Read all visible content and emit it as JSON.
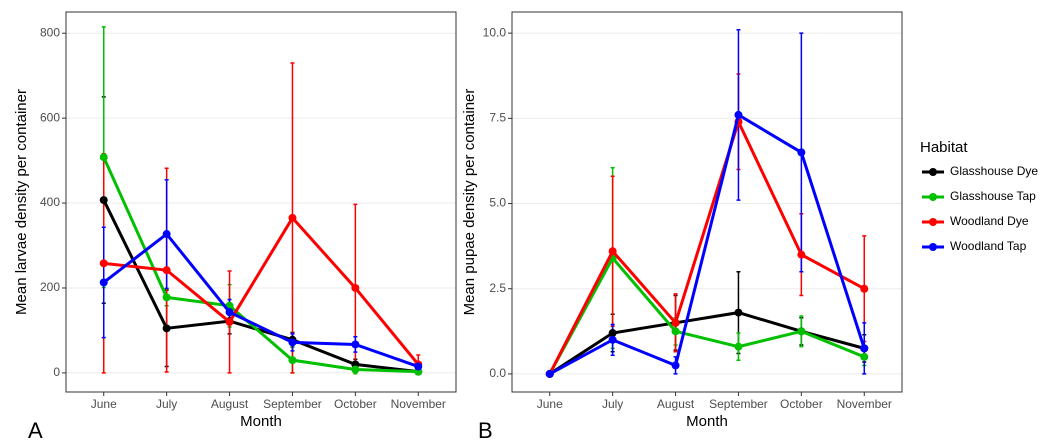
{
  "chart_data": [
    {
      "type": "line",
      "panel_label": "A",
      "x_label": "Month",
      "y_label": "Mean larvae density per container",
      "categories": [
        "June",
        "July",
        "August",
        "September",
        "October",
        "November"
      ],
      "ylim": [
        -45,
        850
      ],
      "yticks": [
        0,
        200,
        400,
        600,
        800
      ],
      "grid": true,
      "legend_title": "Habitat",
      "series": [
        {
          "name": "Glasshouse Dye",
          "color": "#000000",
          "values": [
            407,
            105,
            122,
            78,
            20,
            3
          ],
          "errors": [
            243,
            90,
            30,
            17,
            12,
            5
          ]
        },
        {
          "name": "Glasshouse Tap",
          "color": "#00c000",
          "values": [
            508,
            178,
            158,
            30,
            8,
            3
          ],
          "errors": [
            307,
            20,
            50,
            30,
            10,
            5
          ]
        },
        {
          "name": "Woodland Dye",
          "color": "#ff0000",
          "values": [
            258,
            242,
            120,
            365,
            200,
            20
          ],
          "errors": [
            258,
            240,
            120,
            365,
            197,
            22
          ]
        },
        {
          "name": "Woodland Tap",
          "color": "#0000ff",
          "values": [
            213,
            327,
            143,
            72,
            67,
            15
          ],
          "errors": [
            130,
            128,
            30,
            20,
            18,
            8
          ]
        }
      ]
    },
    {
      "type": "line",
      "panel_label": "B",
      "x_label": "Month",
      "y_label": "Mean pupae density per container",
      "categories": [
        "June",
        "July",
        "August",
        "September",
        "October",
        "November"
      ],
      "ylim": [
        -0.53,
        10.62
      ],
      "yticks": [
        {
          "value": 0,
          "label": "0.0"
        },
        {
          "value": 2.5,
          "label": "2.5"
        },
        {
          "value": 5,
          "label": "5.0"
        },
        {
          "value": 7.5,
          "label": "7.5"
        },
        {
          "value": 10,
          "label": "10.0"
        }
      ],
      "grid": true,
      "series": [
        {
          "name": "Glasshouse Dye",
          "color": "#000000",
          "values": [
            0,
            1.2,
            1.5,
            1.8,
            1.25,
            0.75
          ],
          "errors": [
            0,
            0.55,
            0.8,
            1.2,
            0.4,
            0.4
          ]
        },
        {
          "name": "Glasshouse Tap",
          "color": "#00c000",
          "values": [
            0,
            3.4,
            1.25,
            0.8,
            1.25,
            0.5
          ],
          "errors": [
            0,
            2.65,
            0.4,
            0.4,
            0.45,
            0.25
          ]
        },
        {
          "name": "Woodland Dye",
          "color": "#ff0000",
          "values": [
            0,
            3.6,
            1.5,
            7.4,
            3.5,
            2.5
          ],
          "errors": [
            0,
            2.2,
            0.85,
            1.4,
            1.2,
            1.55
          ]
        },
        {
          "name": "Woodland Tap",
          "color": "#0000ff",
          "values": [
            0,
            1.0,
            0.25,
            7.6,
            6.5,
            0.75
          ],
          "errors": [
            0,
            0.45,
            0.25,
            2.5,
            3.5,
            0.75
          ]
        }
      ]
    }
  ]
}
